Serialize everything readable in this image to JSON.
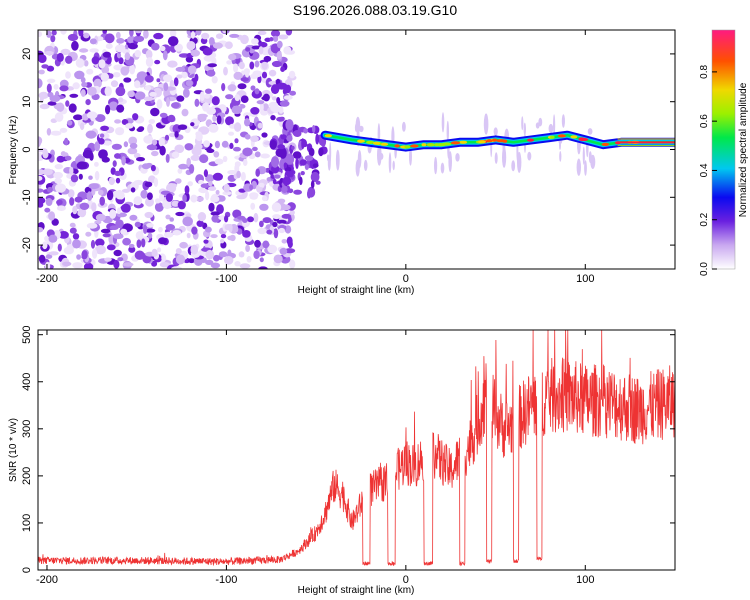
{
  "title": "S196.2026.088.03.19.G10",
  "chart_data": [
    {
      "type": "heatmap",
      "xlabel": "Height of straight line (km)",
      "ylabel": "Frequency (Hz)",
      "xlim": [
        -205,
        150
      ],
      "ylim": [
        -25,
        25
      ],
      "xticks": [
        -200,
        -100,
        0,
        100
      ],
      "yticks": [
        -20,
        -10,
        0,
        10,
        20
      ],
      "noise_region_x": [
        -205,
        -63
      ],
      "transition_x": [
        -75,
        -45
      ],
      "signal_track": {
        "x": [
          -45,
          -30,
          -20,
          -10,
          0,
          10,
          20,
          30,
          40,
          50,
          60,
          70,
          80,
          90,
          100,
          110,
          120,
          150
        ],
        "freq": [
          3,
          2,
          1.5,
          1,
          0.5,
          1,
          1,
          1.5,
          1.5,
          2,
          1.5,
          2,
          2.5,
          3,
          2,
          1,
          1.5,
          1.5
        ]
      },
      "colorbar": {
        "label": "Normalized spectral amplitude",
        "range": [
          0,
          0.97
        ],
        "ticks": [
          0.0,
          0.2,
          0.4,
          0.6,
          0.8
        ],
        "tick_labels": [
          "0.0",
          "0.2",
          "0.4",
          "0.6",
          "0.8"
        ]
      }
    },
    {
      "type": "line",
      "xlabel": "Height of straight line (km)",
      "ylabel": "SNR (10 * v/v)",
      "xlim": [
        -205,
        150
      ],
      "ylim": [
        0,
        510
      ],
      "xticks": [
        -200,
        -100,
        0,
        100
      ],
      "yticks": [
        0,
        100,
        200,
        300,
        400,
        500
      ],
      "color": "#ee3333",
      "series": [
        {
          "name": "SNR",
          "x": [
            -205,
            -150,
            -100,
            -70,
            -60,
            -50,
            -45,
            -40,
            -35,
            -30,
            -25,
            -20,
            -15,
            -10,
            -5,
            0,
            5,
            10,
            15,
            20,
            25,
            30,
            35,
            40,
            45,
            50,
            55,
            60,
            65,
            70,
            75,
            80,
            90,
            100,
            110,
            120,
            130,
            140,
            150
          ],
          "value": [
            20,
            20,
            18,
            22,
            40,
            80,
            120,
            180,
            160,
            100,
            140,
            170,
            180,
            190,
            210,
            230,
            220,
            240,
            250,
            230,
            210,
            240,
            260,
            310,
            380,
            330,
            300,
            310,
            330,
            350,
            360,
            370,
            370,
            360,
            360,
            350,
            340,
            350,
            360
          ]
        }
      ],
      "dropouts": [
        {
          "x": [
            -24,
            -20
          ],
          "value": 10
        },
        {
          "x": [
            -10,
            -6
          ],
          "value": 10
        },
        {
          "x": [
            10,
            15
          ],
          "value": 10
        },
        {
          "x": [
            30,
            33
          ],
          "value": 10
        },
        {
          "x": [
            45,
            48
          ],
          "value": 15
        },
        {
          "x": [
            60,
            63
          ],
          "value": 15
        },
        {
          "x": [
            73,
            76
          ],
          "value": 20
        }
      ]
    }
  ]
}
